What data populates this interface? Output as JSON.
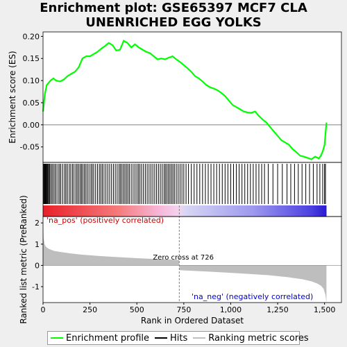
{
  "title_line1": "Enrichment plot: GSE65397 MCF7 CLA",
  "title_line2": "UNENRICHED EGG YOLKS",
  "colors": {
    "enrichment": "#00ff00",
    "hits": "#000000",
    "ranking": "#bebebe",
    "zero_line": "#808080",
    "pos_label": "#cc0000",
    "neg_label": "#0000cc"
  },
  "legend": [
    {
      "label": "Enrichment profile",
      "color": "#00ff00"
    },
    {
      "label": "Hits",
      "color": "#000000"
    },
    {
      "label": "Ranking metric scores",
      "color": "#bebebe"
    }
  ],
  "chart_data": [
    {
      "type": "line",
      "ylabel": "Enrichment score (ES)",
      "xlim": [
        0,
        1590
      ],
      "ylim": [
        -0.085,
        0.21
      ],
      "yticks": [
        "-0.05",
        "0.00",
        "0.05",
        "0.10",
        "0.15",
        "0.20"
      ],
      "ytick_values": [
        -0.05,
        0.0,
        0.05,
        0.1,
        0.15,
        0.2
      ],
      "series": [
        {
          "x": [
            0,
            10,
            20,
            40,
            55,
            70,
            90,
            110,
            130,
            150,
            170,
            190,
            210,
            230,
            250,
            270,
            290,
            310,
            330,
            350,
            370,
            390,
            410,
            430,
            450,
            470,
            490,
            510,
            530,
            550,
            570,
            590,
            610,
            630,
            650,
            670,
            690,
            710,
            730,
            750,
            770,
            790,
            810,
            830,
            850,
            870,
            890,
            910,
            930,
            950,
            970,
            990,
            1010,
            1030,
            1050,
            1070,
            1090,
            1110,
            1130,
            1150,
            1170,
            1190,
            1210,
            1230,
            1250,
            1270,
            1290,
            1310,
            1330,
            1350,
            1370,
            1390,
            1410,
            1430,
            1450,
            1470,
            1480,
            1490,
            1500,
            1505,
            1510
          ],
          "y": [
            0.03,
            0.07,
            0.09,
            0.1,
            0.105,
            0.1,
            0.098,
            0.102,
            0.11,
            0.115,
            0.12,
            0.13,
            0.15,
            0.155,
            0.155,
            0.16,
            0.165,
            0.172,
            0.178,
            0.185,
            0.18,
            0.168,
            0.17,
            0.19,
            0.185,
            0.175,
            0.182,
            0.175,
            0.17,
            0.165,
            0.162,
            0.155,
            0.148,
            0.15,
            0.148,
            0.152,
            0.155,
            0.148,
            0.142,
            0.135,
            0.128,
            0.12,
            0.11,
            0.105,
            0.098,
            0.09,
            0.085,
            0.082,
            0.078,
            0.072,
            0.065,
            0.055,
            0.045,
            0.04,
            0.035,
            0.03,
            0.028,
            0.027,
            0.03,
            0.02,
            0.012,
            0.005,
            -0.005,
            -0.015,
            -0.025,
            -0.035,
            -0.04,
            -0.045,
            -0.055,
            -0.062,
            -0.07,
            -0.072,
            -0.075,
            -0.078,
            -0.072,
            -0.076,
            -0.07,
            -0.06,
            -0.045,
            -0.02,
            0.005
          ]
        }
      ]
    },
    {
      "type": "hits",
      "hit_ranks": [
        3,
        6,
        9,
        12,
        15,
        18,
        22,
        26,
        30,
        35,
        41,
        48,
        55,
        63,
        70,
        80,
        88,
        95,
        105,
        115,
        122,
        130,
        140,
        148,
        157,
        165,
        175,
        182,
        190,
        198,
        205,
        212,
        220,
        228,
        236,
        245,
        255,
        262,
        270,
        280,
        290,
        300,
        308,
        316,
        325,
        335,
        345,
        355,
        365,
        375,
        385,
        395,
        405,
        412,
        420,
        428,
        436,
        444,
        452,
        460,
        470,
        480,
        490,
        500,
        508,
        516,
        525,
        535,
        545,
        555,
        565,
        575,
        585,
        595,
        605,
        615,
        625,
        635,
        645,
        652,
        660,
        668,
        676,
        684,
        692,
        700,
        710,
        720,
        730,
        740,
        750,
        762,
        775,
        790,
        805,
        820,
        835,
        850,
        865,
        880,
        895,
        910,
        925,
        940,
        955,
        970,
        985,
        1000,
        1015,
        1030,
        1045,
        1060,
        1075,
        1090,
        1105,
        1120,
        1135,
        1150,
        1165,
        1180,
        1200,
        1225,
        1250,
        1275,
        1300,
        1320,
        1340,
        1360,
        1380,
        1400,
        1420,
        1440,
        1460,
        1475,
        1490,
        1500,
        1505
      ]
    },
    {
      "type": "area",
      "ylabel": "Ranked list metric (PreRanked)",
      "xlabel": "Rank in Ordered Dataset",
      "xlim": [
        0,
        1590
      ],
      "ylim": [
        -1.75,
        2.3
      ],
      "xticks": [
        "0",
        "250",
        "500",
        "750",
        "1,000",
        "1,250",
        "1,500"
      ],
      "xtick_values": [
        0,
        250,
        500,
        750,
        1000,
        1250,
        1500
      ],
      "yticks": [
        "-1",
        "0",
        "1",
        "2"
      ],
      "ytick_values": [
        -1,
        0,
        1,
        2
      ],
      "series": [
        {
          "x": [
            0,
            3,
            8,
            15,
            30,
            60,
            100,
            150,
            200,
            300,
            400,
            500,
            600,
            700,
            725,
            727,
            760,
            900,
            1000,
            1100,
            1200,
            1300,
            1380,
            1430,
            1460,
            1480,
            1495,
            1505,
            1510
          ],
          "y": [
            2.2,
            1.3,
            1.0,
            0.88,
            0.78,
            0.68,
            0.62,
            0.56,
            0.51,
            0.44,
            0.39,
            0.34,
            0.3,
            0.27,
            0.26,
            -0.22,
            -0.24,
            -0.3,
            -0.35,
            -0.4,
            -0.46,
            -0.55,
            -0.65,
            -0.75,
            -0.85,
            -0.95,
            -1.1,
            -1.4,
            -1.75
          ]
        }
      ],
      "annotations": [
        {
          "text": "Zero cross at 726",
          "x": 726
        },
        {
          "text": "'na_pos' (positively correlated)"
        },
        {
          "text": "'na_neg' (negatively correlated)"
        }
      ],
      "zero_cross": 726,
      "n": 1510
    }
  ]
}
